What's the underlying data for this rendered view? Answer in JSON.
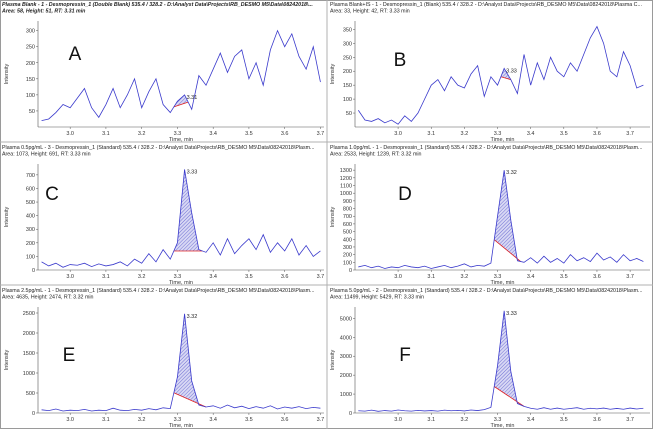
{
  "chart_data": [
    {
      "type": "line",
      "title": "Plasma Blank - 1 - Desmopressin_1 (Double Blank) 535.4 / 328.2 - D:\\Analyst Data\\Projects\\RB_DESMO M5\\Data\\08242018\\...",
      "subtitle": "Area: 58, Height: 51, RT: 3.31 min",
      "annotation": "A",
      "xlabel": "Time, min",
      "ylabel": "Intensity",
      "color": "#3a3acc",
      "x": [
        2.92,
        2.94,
        2.96,
        2.98,
        3.0,
        3.02,
        3.04,
        3.06,
        3.08,
        3.1,
        3.12,
        3.14,
        3.16,
        3.18,
        3.2,
        3.22,
        3.24,
        3.26,
        3.28,
        3.3,
        3.32,
        3.34,
        3.36,
        3.38,
        3.4,
        3.42,
        3.44,
        3.46,
        3.48,
        3.5,
        3.52,
        3.54,
        3.56,
        3.58,
        3.6,
        3.62,
        3.64,
        3.66,
        3.68,
        3.7
      ],
      "values": [
        20,
        25,
        45,
        70,
        60,
        90,
        120,
        60,
        30,
        70,
        120,
        60,
        100,
        150,
        60,
        110,
        150,
        70,
        45,
        80,
        100,
        55,
        160,
        130,
        180,
        230,
        170,
        220,
        240,
        150,
        200,
        130,
        240,
        300,
        250,
        290,
        220,
        180,
        250,
        140
      ],
      "xlim": [
        2.91,
        3.71
      ],
      "ylim": [
        0,
        330
      ],
      "xticks": [
        {
          "value": 3,
          "label": "3.0"
        },
        3.1,
        3.2,
        3.3,
        3.4,
        3.5,
        3.6,
        3.7
      ],
      "yticks": [
        50,
        100,
        150,
        200,
        250,
        300
      ],
      "peak": {
        "label": "3.31",
        "start": 3.29,
        "end": 3.33
      }
    },
    {
      "type": "line",
      "title": "Plasma Blank+IS - 1 - Desmopressin_1 (Blank) 535.4 / 328.2 - D:\\Analyst Data\\Projects\\RB_DESMO M5\\Data\\08242018\\Plasma C...",
      "subtitle": "Area: 33, Height: 42, RT: 3.33 min",
      "annotation": "B",
      "xlabel": "Time, min",
      "ylabel": "Intensity",
      "color": "#3a3acc",
      "x": [
        2.88,
        2.9,
        2.92,
        2.94,
        2.96,
        2.98,
        3.0,
        3.02,
        3.04,
        3.06,
        3.08,
        3.1,
        3.12,
        3.14,
        3.16,
        3.18,
        3.2,
        3.22,
        3.24,
        3.26,
        3.28,
        3.3,
        3.32,
        3.34,
        3.36,
        3.38,
        3.4,
        3.42,
        3.44,
        3.46,
        3.48,
        3.5,
        3.52,
        3.54,
        3.56,
        3.58,
        3.6,
        3.62,
        3.64,
        3.66,
        3.68,
        3.7,
        3.72,
        3.74
      ],
      "values": [
        60,
        25,
        20,
        30,
        15,
        25,
        10,
        40,
        20,
        50,
        100,
        150,
        170,
        130,
        180,
        150,
        140,
        190,
        220,
        110,
        180,
        150,
        210,
        170,
        120,
        260,
        150,
        230,
        170,
        250,
        200,
        180,
        230,
        200,
        260,
        320,
        360,
        300,
        200,
        180,
        270,
        220,
        140,
        150
      ],
      "xlim": [
        2.87,
        3.76
      ],
      "ylim": [
        0,
        380
      ],
      "xticks": [
        {
          "value": 3,
          "label": "3.0"
        },
        3.1,
        3.2,
        3.3,
        3.4,
        3.5,
        3.6,
        3.7
      ],
      "yticks": [
        50,
        100,
        150,
        200,
        250,
        300,
        350
      ],
      "peak": {
        "label": "3.33",
        "start": 3.31,
        "end": 3.34
      }
    },
    {
      "type": "line",
      "title": "Plasma 0.5pg/mL - 3 - Desmopressin_1 (Standard) 535.4 / 328.2 - D:\\Analyst Data\\Projects\\RB_DESMO M5\\Data\\08242018\\Plasm...",
      "subtitle": "Area: 1073, Height: 691, RT: 3.33 min",
      "annotation": "C",
      "xlabel": "Time, min",
      "ylabel": "Intensity",
      "color": "#3a3acc",
      "x": [
        2.92,
        2.94,
        2.96,
        2.98,
        3.0,
        3.02,
        3.04,
        3.06,
        3.08,
        3.1,
        3.12,
        3.14,
        3.16,
        3.18,
        3.2,
        3.22,
        3.24,
        3.26,
        3.28,
        3.3,
        3.32,
        3.34,
        3.36,
        3.38,
        3.4,
        3.42,
        3.44,
        3.46,
        3.48,
        3.5,
        3.52,
        3.54,
        3.56,
        3.58,
        3.6,
        3.62,
        3.64,
        3.66,
        3.68,
        3.7
      ],
      "values": [
        60,
        30,
        50,
        20,
        40,
        35,
        50,
        25,
        45,
        30,
        40,
        60,
        30,
        80,
        50,
        120,
        60,
        150,
        80,
        200,
        740,
        420,
        150,
        130,
        200,
        110,
        230,
        120,
        180,
        230,
        150,
        260,
        130,
        200,
        140,
        230,
        110,
        180,
        100,
        140
      ],
      "xlim": [
        2.91,
        3.71
      ],
      "ylim": [
        0,
        780
      ],
      "xticks": [
        {
          "value": 3,
          "label": "3.0"
        },
        3.1,
        3.2,
        3.3,
        3.4,
        3.5,
        3.6,
        3.7
      ],
      "yticks": [
        0,
        100,
        200,
        300,
        400,
        500,
        600,
        700
      ],
      "peak": {
        "label": "3.33",
        "start": 3.29,
        "end": 3.37
      }
    },
    {
      "type": "line",
      "title": "Plasma 1.0pg/mL - 1 - Desmopressin_1 (Standard) 535.4 / 328.2 - D:\\Analyst Data\\Projects\\RB_DESMO M5\\Data\\08242018\\Plasm...",
      "subtitle": "Area: 2533, Height: 1239, RT: 3.32 min",
      "annotation": "D",
      "xlabel": "Time, min",
      "ylabel": "Intensity",
      "color": "#3a3acc",
      "x": [
        2.88,
        2.9,
        2.92,
        2.94,
        2.96,
        2.98,
        3.0,
        3.02,
        3.04,
        3.06,
        3.08,
        3.1,
        3.12,
        3.14,
        3.16,
        3.18,
        3.2,
        3.22,
        3.24,
        3.26,
        3.28,
        3.3,
        3.32,
        3.34,
        3.36,
        3.38,
        3.4,
        3.42,
        3.44,
        3.46,
        3.48,
        3.5,
        3.52,
        3.54,
        3.56,
        3.58,
        3.6,
        3.62,
        3.64,
        3.66,
        3.68,
        3.7,
        3.72,
        3.74
      ],
      "values": [
        40,
        60,
        30,
        50,
        20,
        40,
        30,
        60,
        40,
        30,
        50,
        20,
        40,
        60,
        30,
        50,
        80,
        40,
        60,
        50,
        90,
        700,
        1300,
        650,
        120,
        100,
        160,
        90,
        180,
        100,
        150,
        90,
        200,
        120,
        160,
        110,
        220,
        130,
        170,
        100,
        200,
        120,
        150,
        110
      ],
      "xlim": [
        2.87,
        3.76
      ],
      "ylim": [
        0,
        1380
      ],
      "xticks": [
        {
          "value": 3,
          "label": "3.0"
        },
        3.1,
        3.2,
        3.3,
        3.4,
        3.5,
        3.6,
        3.7
      ],
      "yticks": [
        0,
        100,
        200,
        300,
        400,
        500,
        600,
        700,
        800,
        900,
        1000,
        1100,
        1200,
        1300
      ],
      "peak": {
        "label": "3.32",
        "start": 3.29,
        "end": 3.37
      }
    },
    {
      "type": "line",
      "title": "Plasma 2.5pg/mL - 1 - Desmopressin_1 (Standard) 535.4 / 328.2 - D:\\Analyst Data\\Projects\\RB_DESMO M5\\Data\\08242018\\Plasm...",
      "subtitle": "Area: 4635, Height: 2474, RT: 3.32 min",
      "annotation": "E",
      "xlabel": "Time, min",
      "ylabel": "Intensity",
      "color": "#3a3acc",
      "x": [
        2.92,
        2.94,
        2.96,
        2.98,
        3.0,
        3.02,
        3.04,
        3.06,
        3.08,
        3.1,
        3.12,
        3.14,
        3.16,
        3.18,
        3.2,
        3.22,
        3.24,
        3.26,
        3.28,
        3.3,
        3.32,
        3.34,
        3.36,
        3.38,
        3.4,
        3.42,
        3.44,
        3.46,
        3.48,
        3.5,
        3.52,
        3.54,
        3.56,
        3.58,
        3.6,
        3.62,
        3.64,
        3.66,
        3.68,
        3.7
      ],
      "values": [
        80,
        60,
        100,
        50,
        70,
        60,
        90,
        50,
        70,
        60,
        120,
        70,
        60,
        90,
        70,
        110,
        80,
        130,
        110,
        900,
        2480,
        800,
        200,
        150,
        180,
        120,
        200,
        130,
        170,
        110,
        160,
        120,
        180,
        100,
        150,
        120,
        160,
        110,
        140,
        120
      ],
      "xlim": [
        2.91,
        3.71
      ],
      "ylim": [
        0,
        2650
      ],
      "xticks": [
        {
          "value": 3,
          "label": "3.0"
        },
        3.1,
        3.2,
        3.3,
        3.4,
        3.5,
        3.6,
        3.7
      ],
      "yticks": [
        0,
        500,
        1000,
        1500,
        2000,
        2500
      ],
      "peak": {
        "label": "3.32",
        "start": 3.29,
        "end": 3.38
      }
    },
    {
      "type": "line",
      "title": "Plasma 5.0pg/mL - 2 - Desmopressin_1 (Standard) 535.4 / 328.2 - D:\\Analyst Data\\Projects\\RB_DESMO M5\\Data\\08242018\\Plasm...",
      "subtitle": "Area: 11499, Height: 5429, RT: 3.33 min",
      "annotation": "F",
      "xlabel": "Time, min",
      "ylabel": "Intensity",
      "color": "#3a3acc",
      "x": [
        2.88,
        2.9,
        2.92,
        2.94,
        2.96,
        2.98,
        3.0,
        3.02,
        3.04,
        3.06,
        3.08,
        3.1,
        3.12,
        3.14,
        3.16,
        3.18,
        3.2,
        3.22,
        3.24,
        3.26,
        3.28,
        3.3,
        3.32,
        3.34,
        3.36,
        3.38,
        3.4,
        3.42,
        3.44,
        3.46,
        3.48,
        3.5,
        3.52,
        3.54,
        3.56,
        3.58,
        3.6,
        3.62,
        3.64,
        3.66,
        3.68,
        3.7,
        3.72,
        3.74
      ],
      "values": [
        120,
        100,
        150,
        90,
        130,
        100,
        160,
        120,
        100,
        140,
        110,
        130,
        100,
        150,
        120,
        140,
        110,
        160,
        130,
        180,
        300,
        2500,
        5400,
        2200,
        500,
        350,
        250,
        200,
        280,
        200,
        260,
        200,
        240,
        280,
        200,
        250,
        220,
        260,
        200,
        240,
        200,
        260,
        210,
        250
      ],
      "xlim": [
        2.87,
        3.76
      ],
      "ylim": [
        0,
        5600
      ],
      "xticks": [
        {
          "value": 3,
          "label": "3.0"
        },
        3.1,
        3.2,
        3.3,
        3.4,
        3.5,
        3.6,
        3.7
      ],
      "yticks": [
        0,
        1000,
        2000,
        3000,
        4000,
        5000
      ],
      "peak": {
        "label": "3.33",
        "start": 3.29,
        "end": 3.38
      }
    }
  ]
}
